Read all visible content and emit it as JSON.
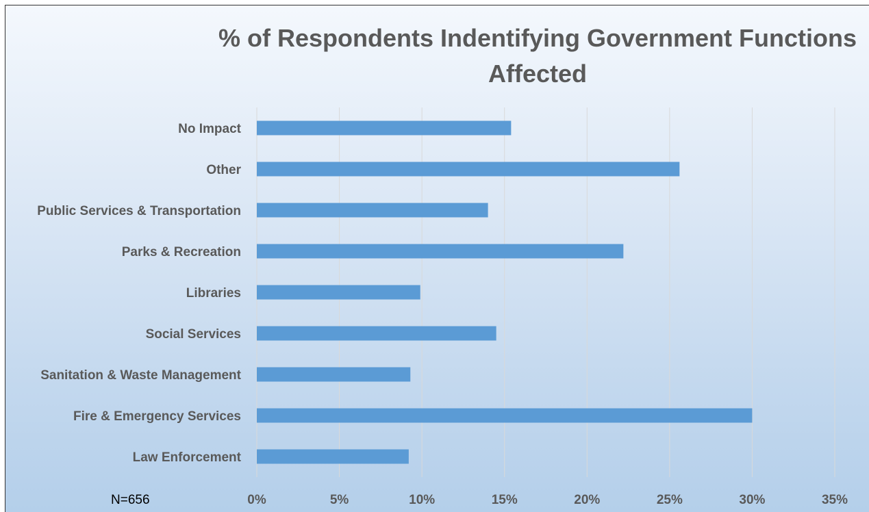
{
  "chart_data": {
    "type": "bar",
    "orientation": "horizontal",
    "title": "% of Respondents Indentifying Government Functions Affected",
    "categories": [
      "No Impact",
      "Other",
      "Public Services & Transportation",
      "Parks & Recreation",
      "Libraries",
      "Social Services",
      "Sanitation & Waste Management",
      "Fire & Emergency Services",
      "Law Enforcement"
    ],
    "values": [
      15.4,
      25.6,
      14.0,
      22.2,
      9.9,
      14.5,
      9.3,
      30.0,
      9.2
    ],
    "value_unit": "%",
    "xlim": [
      0,
      35
    ],
    "xticks": [
      "0%",
      "5%",
      "10%",
      "15%",
      "20%",
      "25%",
      "30%",
      "35%"
    ],
    "grid": "vertical",
    "bar_color": "#5b9bd5",
    "annotation": "N=656"
  }
}
